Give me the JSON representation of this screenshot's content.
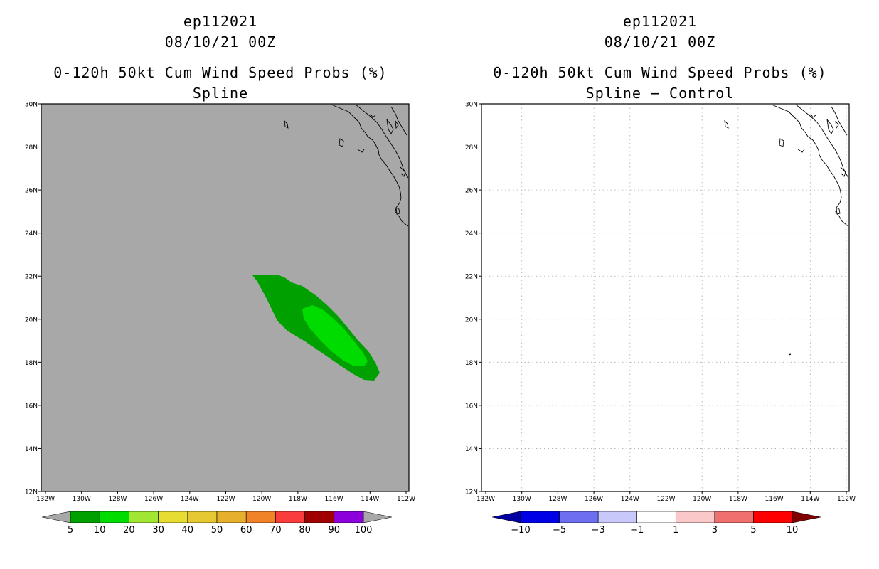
{
  "panels": [
    {
      "storm_id": "ep112021",
      "datetime": "08/10/21 00Z",
      "product": "0-120h 50kt Cum Wind Speed Probs (%)",
      "method": "Spline",
      "background": "#a8a8a8",
      "prob_regions": [
        {
          "level": "5-10",
          "color": "#00a000"
        },
        {
          "level": "10-20",
          "color": "#00dc00"
        }
      ],
      "lat_labels": [
        "30N",
        "28N",
        "26N",
        "24N",
        "22N",
        "20N",
        "18N",
        "16N",
        "14N",
        "12N"
      ],
      "lon_labels": [
        "132W",
        "130W",
        "128W",
        "126W",
        "124W",
        "122W",
        "120W",
        "118W",
        "116W",
        "114W",
        "112W"
      ],
      "colorbar": {
        "labels": [
          "5",
          "10",
          "20",
          "30",
          "40",
          "50",
          "60",
          "70",
          "80",
          "90",
          "100"
        ],
        "colors": [
          "#00a000",
          "#00dc00",
          "#a0e632",
          "#e6dc32",
          "#e6c832",
          "#e6af2d",
          "#f08228",
          "#fa3c3c",
          "#a00000",
          "#8c00dc"
        ],
        "end_color": "#a8a8a8"
      }
    },
    {
      "storm_id": "ep112021",
      "datetime": "08/10/21 00Z",
      "product": "0-120h 50kt Cum Wind Speed Probs (%)",
      "method": "Spline − Control",
      "background": "#ffffff",
      "lat_labels": [
        "30N",
        "28N",
        "26N",
        "24N",
        "22N",
        "20N",
        "18N",
        "16N",
        "14N",
        "12N"
      ],
      "lon_labels": [
        "132W",
        "130W",
        "128W",
        "126W",
        "124W",
        "122W",
        "120W",
        "118W",
        "116W",
        "114W",
        "112W"
      ],
      "colorbar": {
        "labels": [
          "−10",
          "−5",
          "−3",
          "−1",
          "1",
          "3",
          "5",
          "10"
        ],
        "colors": [
          "#0000e6",
          "#6e6ef0",
          "#c8c8fa",
          "#ffffff",
          "#fac8c8",
          "#f07070",
          "#ff0000"
        ],
        "left_end_color": "#0000a0",
        "right_end_color": "#800000"
      }
    }
  ]
}
